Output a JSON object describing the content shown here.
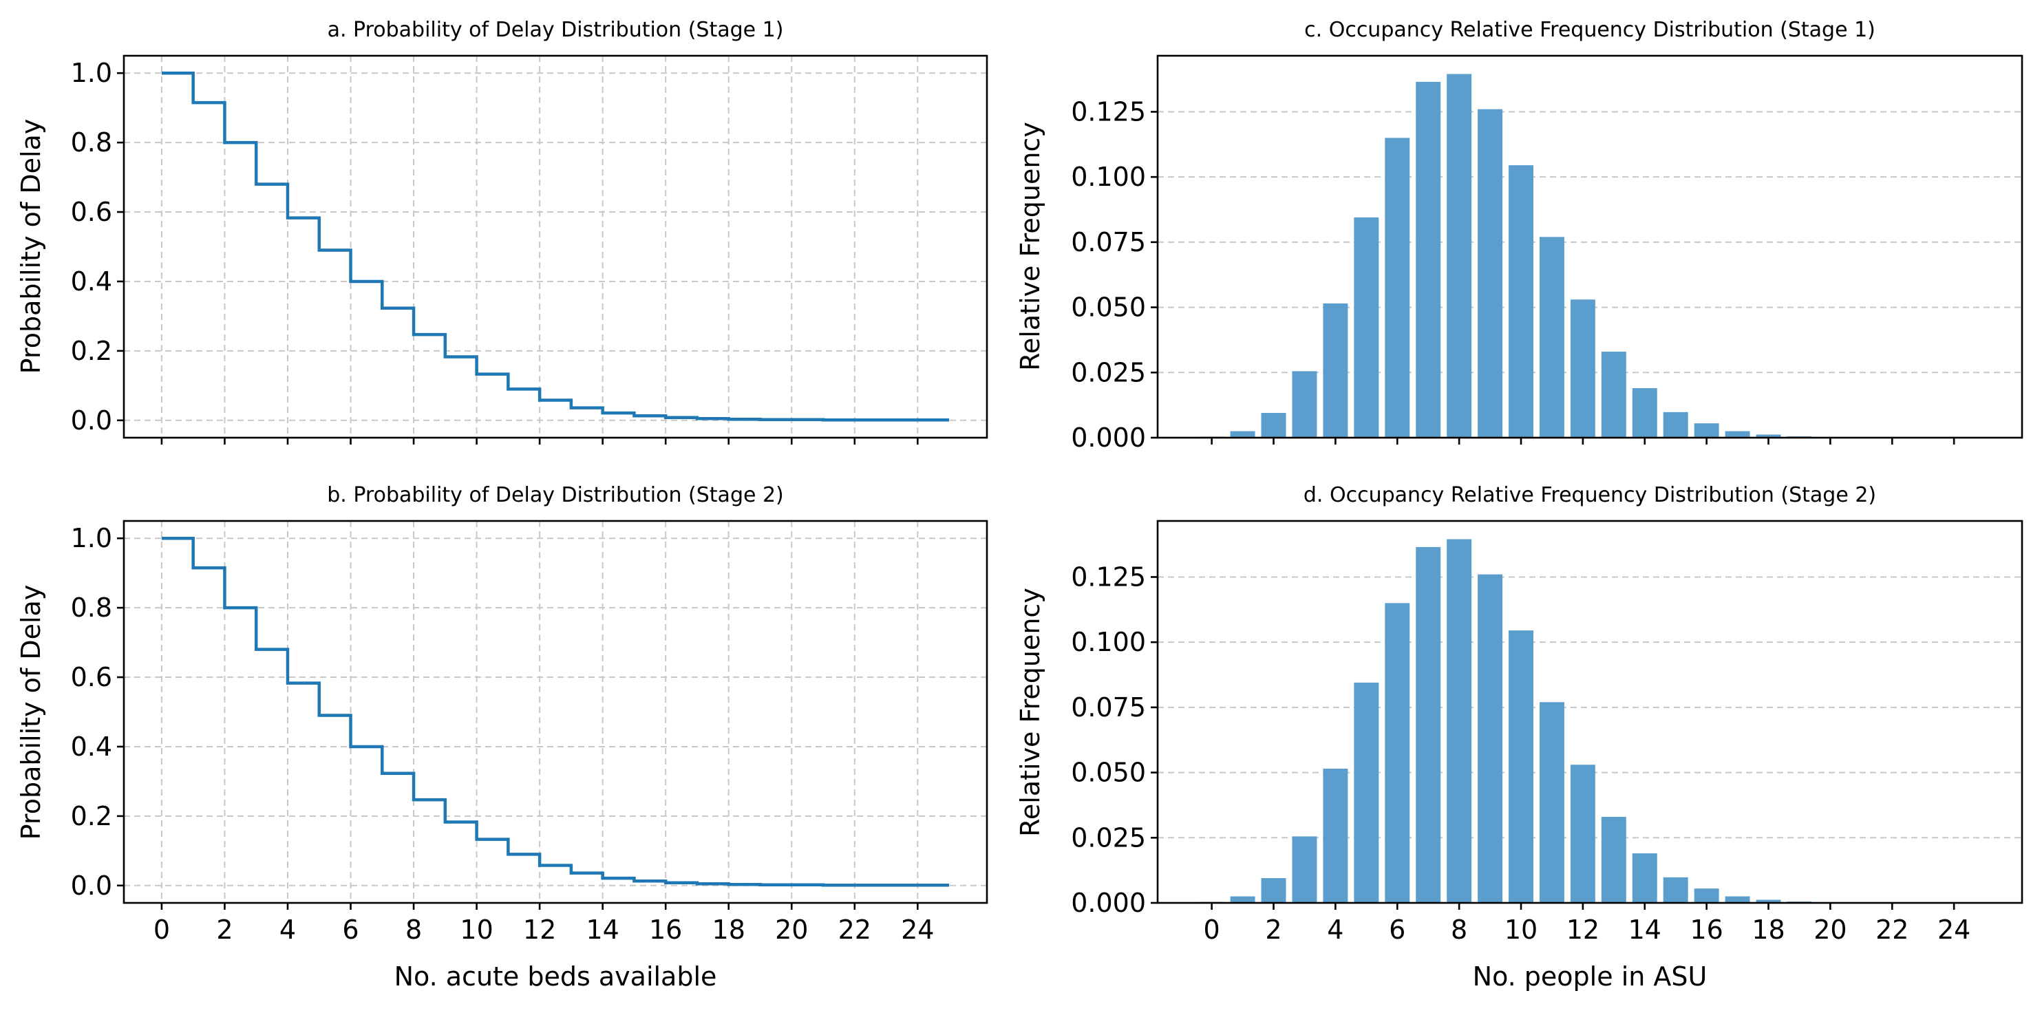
{
  "chart_data": [
    {
      "type": "line",
      "step": "post",
      "title": "a. Probability of Delay Distribution (Stage 1)",
      "xlabel": "",
      "ylabel": "Probability of Delay",
      "xlim": [
        -1.2,
        26.2
      ],
      "ylim": [
        -0.05,
        1.05
      ],
      "xticks": [
        0,
        2,
        4,
        6,
        8,
        10,
        12,
        14,
        16,
        18,
        20,
        22,
        24
      ],
      "xtick_labels_visible": false,
      "yticks": [
        "0.0",
        "0.2",
        "0.4",
        "0.6",
        "0.8",
        "1.0"
      ],
      "grid": "both",
      "color": "#1f77b4",
      "x": [
        0,
        1,
        2,
        3,
        4,
        5,
        6,
        7,
        8,
        9,
        10,
        11,
        12,
        13,
        14,
        15,
        16,
        17,
        18,
        19,
        20,
        21,
        22,
        23,
        24,
        25
      ],
      "y": [
        1.0,
        0.915,
        0.8,
        0.68,
        0.583,
        0.49,
        0.4,
        0.323,
        0.247,
        0.183,
        0.133,
        0.09,
        0.058,
        0.036,
        0.021,
        0.013,
        0.008,
        0.005,
        0.003,
        0.002,
        0.002,
        0.001,
        0.001,
        0.001,
        0.001,
        0.001
      ]
    },
    {
      "type": "bar",
      "title": "c. Occupancy Relative Frequency Distribution (Stage 1)",
      "xlabel": "",
      "ylabel": "Relative Frequency",
      "xlim": [
        -1.75,
        26.2
      ],
      "ylim": [
        0,
        0.1465
      ],
      "xticks": [
        0,
        2,
        4,
        6,
        8,
        10,
        12,
        14,
        16,
        18,
        20,
        22,
        24
      ],
      "xtick_labels_visible": false,
      "yticks": [
        "0.000",
        "0.025",
        "0.050",
        "0.075",
        "0.100",
        "0.125"
      ],
      "grid": "y",
      "color": "#5b9ecd",
      "categories": [
        0,
        1,
        2,
        3,
        4,
        5,
        6,
        7,
        8,
        9,
        10,
        11,
        12,
        13,
        14,
        15,
        16,
        17,
        18,
        19
      ],
      "values": [
        0.0004,
        0.0025,
        0.0095,
        0.0255,
        0.0515,
        0.0845,
        0.115,
        0.1365,
        0.1395,
        0.126,
        0.1045,
        0.077,
        0.053,
        0.033,
        0.019,
        0.0098,
        0.0055,
        0.0025,
        0.0012,
        0.0005
      ]
    },
    {
      "type": "line",
      "step": "post",
      "title": "b. Probability of Delay Distribution (Stage 2)",
      "xlabel": "No. acute beds available",
      "ylabel": "Probability of Delay",
      "xlim": [
        -1.2,
        26.2
      ],
      "ylim": [
        -0.05,
        1.05
      ],
      "xticks": [
        0,
        2,
        4,
        6,
        8,
        10,
        12,
        14,
        16,
        18,
        20,
        22,
        24
      ],
      "xtick_labels_visible": true,
      "yticks": [
        "0.0",
        "0.2",
        "0.4",
        "0.6",
        "0.8",
        "1.0"
      ],
      "grid": "both",
      "color": "#1f77b4",
      "x": [
        0,
        1,
        2,
        3,
        4,
        5,
        6,
        7,
        8,
        9,
        10,
        11,
        12,
        13,
        14,
        15,
        16,
        17,
        18,
        19,
        20,
        21,
        22,
        23,
        24,
        25
      ],
      "y": [
        1.0,
        0.915,
        0.8,
        0.68,
        0.583,
        0.49,
        0.4,
        0.323,
        0.247,
        0.183,
        0.133,
        0.09,
        0.058,
        0.036,
        0.021,
        0.013,
        0.008,
        0.005,
        0.003,
        0.002,
        0.002,
        0.001,
        0.001,
        0.001,
        0.001,
        0.001
      ]
    },
    {
      "type": "bar",
      "title": "d. Occupancy Relative Frequency Distribution (Stage 2)",
      "xlabel": "No. people in ASU",
      "ylabel": "Relative Frequency",
      "xlim": [
        -1.75,
        26.2
      ],
      "ylim": [
        0,
        0.1465
      ],
      "xticks": [
        0,
        2,
        4,
        6,
        8,
        10,
        12,
        14,
        16,
        18,
        20,
        22,
        24
      ],
      "xtick_labels_visible": true,
      "yticks": [
        "0.000",
        "0.025",
        "0.050",
        "0.075",
        "0.100",
        "0.125"
      ],
      "grid": "y",
      "color": "#5b9ecd",
      "categories": [
        0,
        1,
        2,
        3,
        4,
        5,
        6,
        7,
        8,
        9,
        10,
        11,
        12,
        13,
        14,
        15,
        16,
        17,
        18,
        19
      ],
      "values": [
        0.0004,
        0.0025,
        0.0095,
        0.0255,
        0.0515,
        0.0845,
        0.115,
        0.1365,
        0.1395,
        0.126,
        0.1045,
        0.077,
        0.053,
        0.033,
        0.019,
        0.0098,
        0.0055,
        0.0025,
        0.0012,
        0.0005
      ]
    }
  ]
}
